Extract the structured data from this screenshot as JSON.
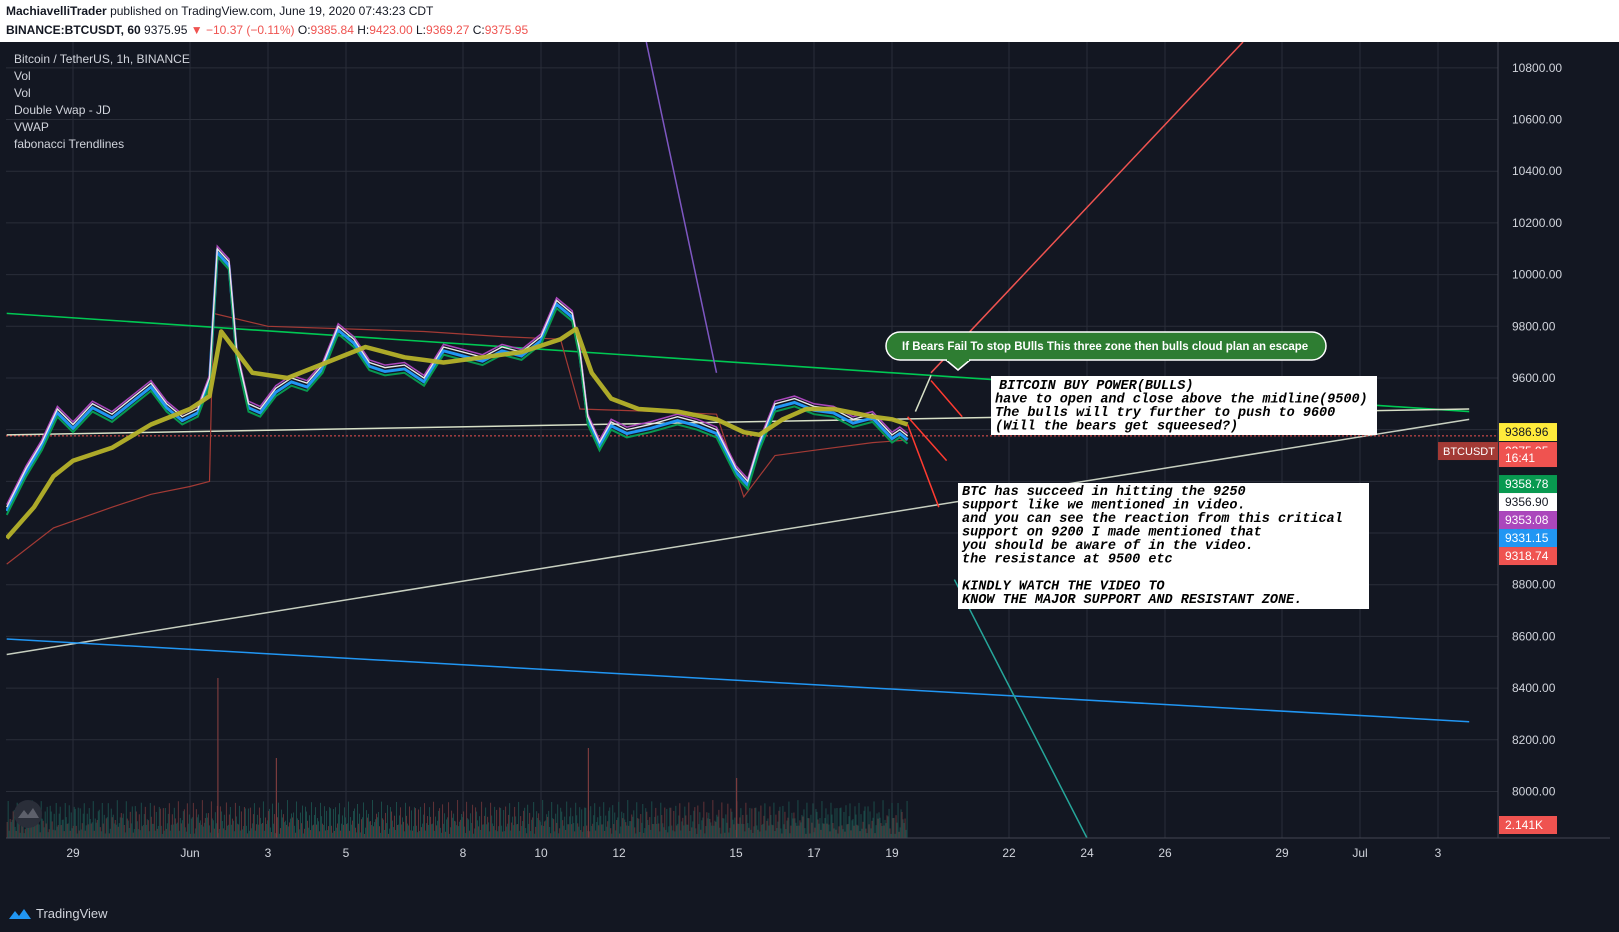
{
  "header": {
    "publisher": "MachiavelliTrader",
    "published_text": "published on TradingView.com, June 19, 2020 07:43:23 CDT",
    "symbol": "BINANCE:BTCUSDT, 60",
    "last": "9375.95",
    "change": "−10.37 (−0.11%)",
    "o_label": "O:",
    "o": "9385.84",
    "h_label": "H:",
    "h": "9423.00",
    "l_label": "L:",
    "l": "9369.27",
    "c_label": "C:",
    "c": "9375.95"
  },
  "legend": {
    "title": "Bitcoin / TetherUS, 1h, BINANCE",
    "indicators": [
      "Vol",
      "Vol",
      "Double Vwap - JD",
      "VWAP",
      "fabonacci Trendlines"
    ]
  },
  "annotations": {
    "bubble": "If Bears Fail To stop BUlls This three zone then bulls cloud plan an escape",
    "box1": [
      "BITCOIN BUY POWER(BULLS)",
      "have  to open and close above the midline(9500)",
      "The bulls will try further to push to 9600",
      "(Will the bears get squeesed?)"
    ],
    "box2": [
      "BTC has succeed in hitting the 9250",
      "support like we mentioned in video.",
      "and you can see the reaction from this critical",
      "support on 9200 I made mentioned that",
      "you should be aware of in the video.",
      "the resistance at 9500 etc",
      "",
      "KINDLY WATCH THE VIDEO TO",
      "KNOW THE MAJOR SUPPORT AND RESISTANT ZONE."
    ]
  },
  "price_tags": [
    {
      "text": "9386.96",
      "price": 9386.96,
      "bg": "#ffeb3b",
      "fg": "#131722"
    },
    {
      "text": "9375.95",
      "price": 9375.95,
      "bg": "#ef5350",
      "fg": "#ffffff",
      "prefix": "BTCUSDT"
    },
    {
      "text": "16:41",
      "price": 9323,
      "bg": "#ef5350",
      "fg": "#ffffff",
      "offset": 16
    },
    {
      "text": "9358.78",
      "price": 9358.78,
      "bg": "#089950",
      "fg": "#ffffff",
      "offset": 42
    },
    {
      "text": "9356.90",
      "price": 9356.9,
      "bg": "#ffffff",
      "fg": "#131722",
      "offset": 60
    },
    {
      "text": "9353.08",
      "price": 9353.08,
      "bg": "#ab47bc",
      "fg": "#ffffff",
      "offset": 78
    },
    {
      "text": "9331.15",
      "price": 9331.15,
      "bg": "#2196f3",
      "fg": "#ffffff",
      "offset": 96
    },
    {
      "text": "9318.74",
      "price": 9318.74,
      "bg": "#ef5350",
      "fg": "#ffffff",
      "offset": 114
    },
    {
      "text": "2.141K",
      "price": 7880,
      "bg": "#ef5350",
      "fg": "#ffffff"
    }
  ],
  "footer": {
    "brand": "TradingView"
  },
  "colors": {
    "bull": "#26a69a",
    "bear": "#ef5350",
    "background": "#131722",
    "grid": "#2a2e39",
    "trendline_green": "#00c853",
    "trendline_white": "#d7e0c7",
    "vwap": "#b5b22a"
  },
  "chart_data": {
    "type": "line",
    "title": "Bitcoin / TetherUS, 1h, BINANCE",
    "xlabel": "",
    "ylabel": "",
    "x_ticks": [
      {
        "label": "29",
        "day": 0
      },
      {
        "label": "Jun",
        "day": 3
      },
      {
        "label": "3",
        "day": 5
      },
      {
        "label": "5",
        "day": 7
      },
      {
        "label": "8",
        "day": 10
      },
      {
        "label": "10",
        "day": 12
      },
      {
        "label": "12",
        "day": 14
      },
      {
        "label": "15",
        "day": 17
      },
      {
        "label": "17",
        "day": 19
      },
      {
        "label": "19",
        "day": 21
      },
      {
        "label": "22",
        "day": 24
      },
      {
        "label": "24",
        "day": 26
      },
      {
        "label": "26",
        "day": 28
      },
      {
        "label": "29",
        "day": 31
      },
      {
        "label": "Jul",
        "day": 33
      },
      {
        "label": "3",
        "day": 35
      }
    ],
    "y_ticks": [
      8000,
      8200,
      8400,
      8600,
      8800,
      9000,
      9200,
      9400,
      9600,
      9800,
      10000,
      10200,
      10400,
      10600,
      10800
    ],
    "ylim": [
      7820,
      10900
    ],
    "grid": true,
    "price_series": [
      [
        -1.7,
        9100
      ],
      [
        -1.2,
        9250
      ],
      [
        -0.8,
        9350
      ],
      [
        -0.4,
        9480
      ],
      [
        0.0,
        9420
      ],
      [
        0.5,
        9500
      ],
      [
        1.0,
        9460
      ],
      [
        1.5,
        9520
      ],
      [
        2.0,
        9580
      ],
      [
        2.4,
        9500
      ],
      [
        2.8,
        9450
      ],
      [
        3.2,
        9480
      ],
      [
        3.5,
        9600
      ],
      [
        3.7,
        10100
      ],
      [
        4.0,
        10050
      ],
      [
        4.2,
        9700
      ],
      [
        4.5,
        9500
      ],
      [
        4.8,
        9480
      ],
      [
        5.2,
        9560
      ],
      [
        5.6,
        9600
      ],
      [
        6.0,
        9580
      ],
      [
        6.4,
        9650
      ],
      [
        6.8,
        9800
      ],
      [
        7.2,
        9750
      ],
      [
        7.6,
        9660
      ],
      [
        8.0,
        9640
      ],
      [
        8.5,
        9650
      ],
      [
        9.0,
        9600
      ],
      [
        9.5,
        9720
      ],
      [
        10.0,
        9700
      ],
      [
        10.5,
        9680
      ],
      [
        11.0,
        9720
      ],
      [
        11.5,
        9700
      ],
      [
        12.0,
        9760
      ],
      [
        12.4,
        9900
      ],
      [
        12.8,
        9850
      ],
      [
        13.0,
        9700
      ],
      [
        13.2,
        9450
      ],
      [
        13.5,
        9350
      ],
      [
        13.8,
        9430
      ],
      [
        14.2,
        9400
      ],
      [
        14.8,
        9420
      ],
      [
        15.5,
        9450
      ],
      [
        16.0,
        9430
      ],
      [
        16.5,
        9400
      ],
      [
        17.0,
        9250
      ],
      [
        17.3,
        9200
      ],
      [
        17.6,
        9350
      ],
      [
        18.0,
        9500
      ],
      [
        18.5,
        9520
      ],
      [
        19.0,
        9490
      ],
      [
        19.5,
        9480
      ],
      [
        20.0,
        9440
      ],
      [
        20.5,
        9460
      ],
      [
        21.0,
        9380
      ],
      [
        21.2,
        9400
      ],
      [
        21.4,
        9376
      ]
    ],
    "ma_series": [
      [
        -1.7,
        8980
      ],
      [
        -1.0,
        9100
      ],
      [
        -0.5,
        9220
      ],
      [
        0.0,
        9280
      ],
      [
        1.0,
        9330
      ],
      [
        2.0,
        9420
      ],
      [
        3.0,
        9480
      ],
      [
        3.5,
        9530
      ],
      [
        3.8,
        9780
      ],
      [
        4.2,
        9700
      ],
      [
        4.6,
        9620
      ],
      [
        5.5,
        9600
      ],
      [
        6.5,
        9660
      ],
      [
        7.5,
        9720
      ],
      [
        8.5,
        9680
      ],
      [
        9.5,
        9660
      ],
      [
        10.5,
        9680
      ],
      [
        11.5,
        9700
      ],
      [
        12.5,
        9750
      ],
      [
        12.9,
        9790
      ],
      [
        13.3,
        9620
      ],
      [
        13.8,
        9520
      ],
      [
        14.5,
        9480
      ],
      [
        15.5,
        9470
      ],
      [
        16.5,
        9440
      ],
      [
        17.2,
        9390
      ],
      [
        17.6,
        9380
      ],
      [
        18.2,
        9440
      ],
      [
        18.8,
        9480
      ],
      [
        19.5,
        9480
      ],
      [
        20.5,
        9450
      ],
      [
        21.0,
        9440
      ],
      [
        21.4,
        9420
      ]
    ],
    "vwap_low_series": [
      [
        -1.7,
        8880
      ],
      [
        -0.5,
        9020
      ],
      [
        1.0,
        9100
      ],
      [
        2.0,
        9150
      ],
      [
        3.0,
        9180
      ],
      [
        3.5,
        9200
      ],
      [
        3.6,
        9850
      ],
      [
        5.0,
        9800
      ],
      [
        7.0,
        9790
      ],
      [
        9.0,
        9780
      ],
      [
        11.0,
        9760
      ],
      [
        12.5,
        9750
      ],
      [
        13.0,
        9480
      ],
      [
        15.0,
        9470
      ],
      [
        16.5,
        9460
      ],
      [
        17.2,
        9140
      ],
      [
        18.0,
        9300
      ],
      [
        19.0,
        9320
      ],
      [
        20.5,
        9350
      ],
      [
        21.4,
        9360
      ]
    ],
    "trendlines": [
      {
        "name": "green",
        "points": [
          [
            -1.7,
            9850
          ],
          [
            35.8,
            9470
          ]
        ],
        "color": "#00c853"
      },
      {
        "name": "white-upper",
        "points": [
          [
            -1.7,
            9380
          ],
          [
            35.8,
            9480
          ]
        ],
        "color": "#d7e0c7"
      },
      {
        "name": "white-lower",
        "points": [
          [
            -1.7,
            8530
          ],
          [
            35.8,
            9440
          ]
        ],
        "color": "#c7cfc0"
      },
      {
        "name": "blue",
        "points": [
          [
            -1.7,
            8590
          ],
          [
            35.8,
            8270
          ]
        ],
        "color": "#2196f3"
      },
      {
        "name": "fib-red-up",
        "points": [
          [
            22.0,
            9620
          ],
          [
            30.0,
            10900
          ]
        ],
        "color": "#ef5350"
      },
      {
        "name": "fib-purple-down",
        "points": [
          [
            14.7,
            10900
          ],
          [
            16.5,
            9620
          ]
        ],
        "color": "#7e57c2"
      },
      {
        "name": "fib-teal-down",
        "points": [
          [
            22.6,
            8820
          ],
          [
            26.0,
            7820
          ]
        ],
        "color": "#26a69a"
      }
    ]
  }
}
